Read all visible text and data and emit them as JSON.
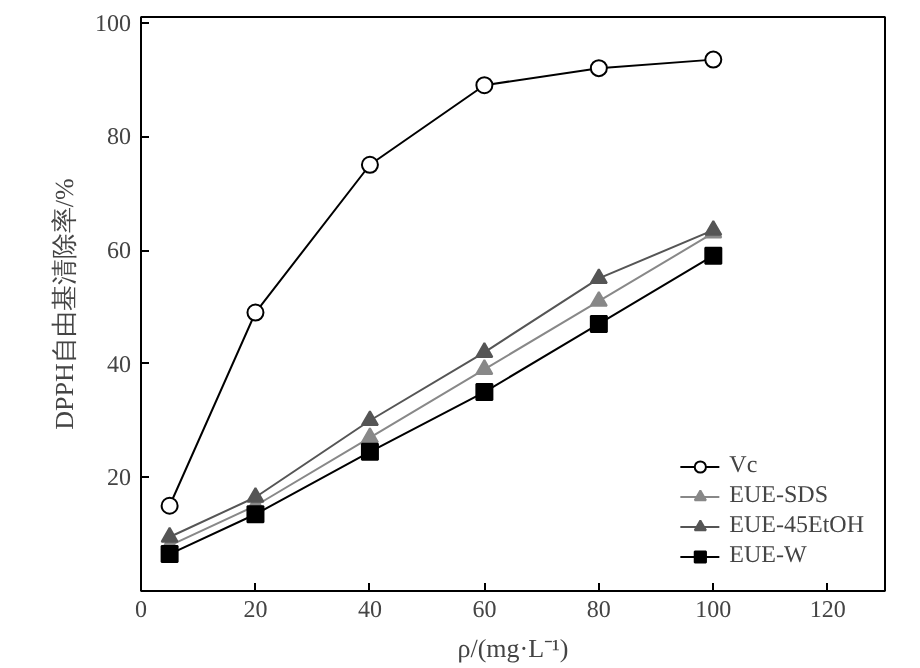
{
  "chart_data": {
    "type": "line",
    "xlabel": "ρ/(mg·L⁻¹)",
    "ylabel": "DPPH自由基清除率/%",
    "x": [
      5,
      20,
      40,
      60,
      80,
      100
    ],
    "series": [
      {
        "name": "Vc",
        "color": "#000000",
        "marker": "circle",
        "values": [
          15,
          49,
          75,
          89,
          92,
          93.5
        ]
      },
      {
        "name": "EUE-SDS",
        "color": "#888888",
        "marker": "triangle",
        "values": [
          8,
          15,
          27,
          39,
          51,
          63
        ]
      },
      {
        "name": "EUE-45EtOH",
        "color": "#555555",
        "marker": "triangle",
        "values": [
          9.5,
          16.5,
          30,
          42,
          55,
          63.5
        ]
      },
      {
        "name": "EUE-W",
        "color": "#000000",
        "marker": "square",
        "values": [
          6.5,
          13.5,
          24.5,
          35,
          47,
          59
        ]
      }
    ],
    "xlim": [
      0,
      130
    ],
    "xticks": [
      0,
      20,
      40,
      60,
      80,
      100,
      120
    ],
    "ylim": [
      0,
      101
    ],
    "yticks": [
      20,
      40,
      60,
      80,
      100
    ],
    "legend": "bottom right",
    "grid": false,
    "line_style": "solid"
  }
}
